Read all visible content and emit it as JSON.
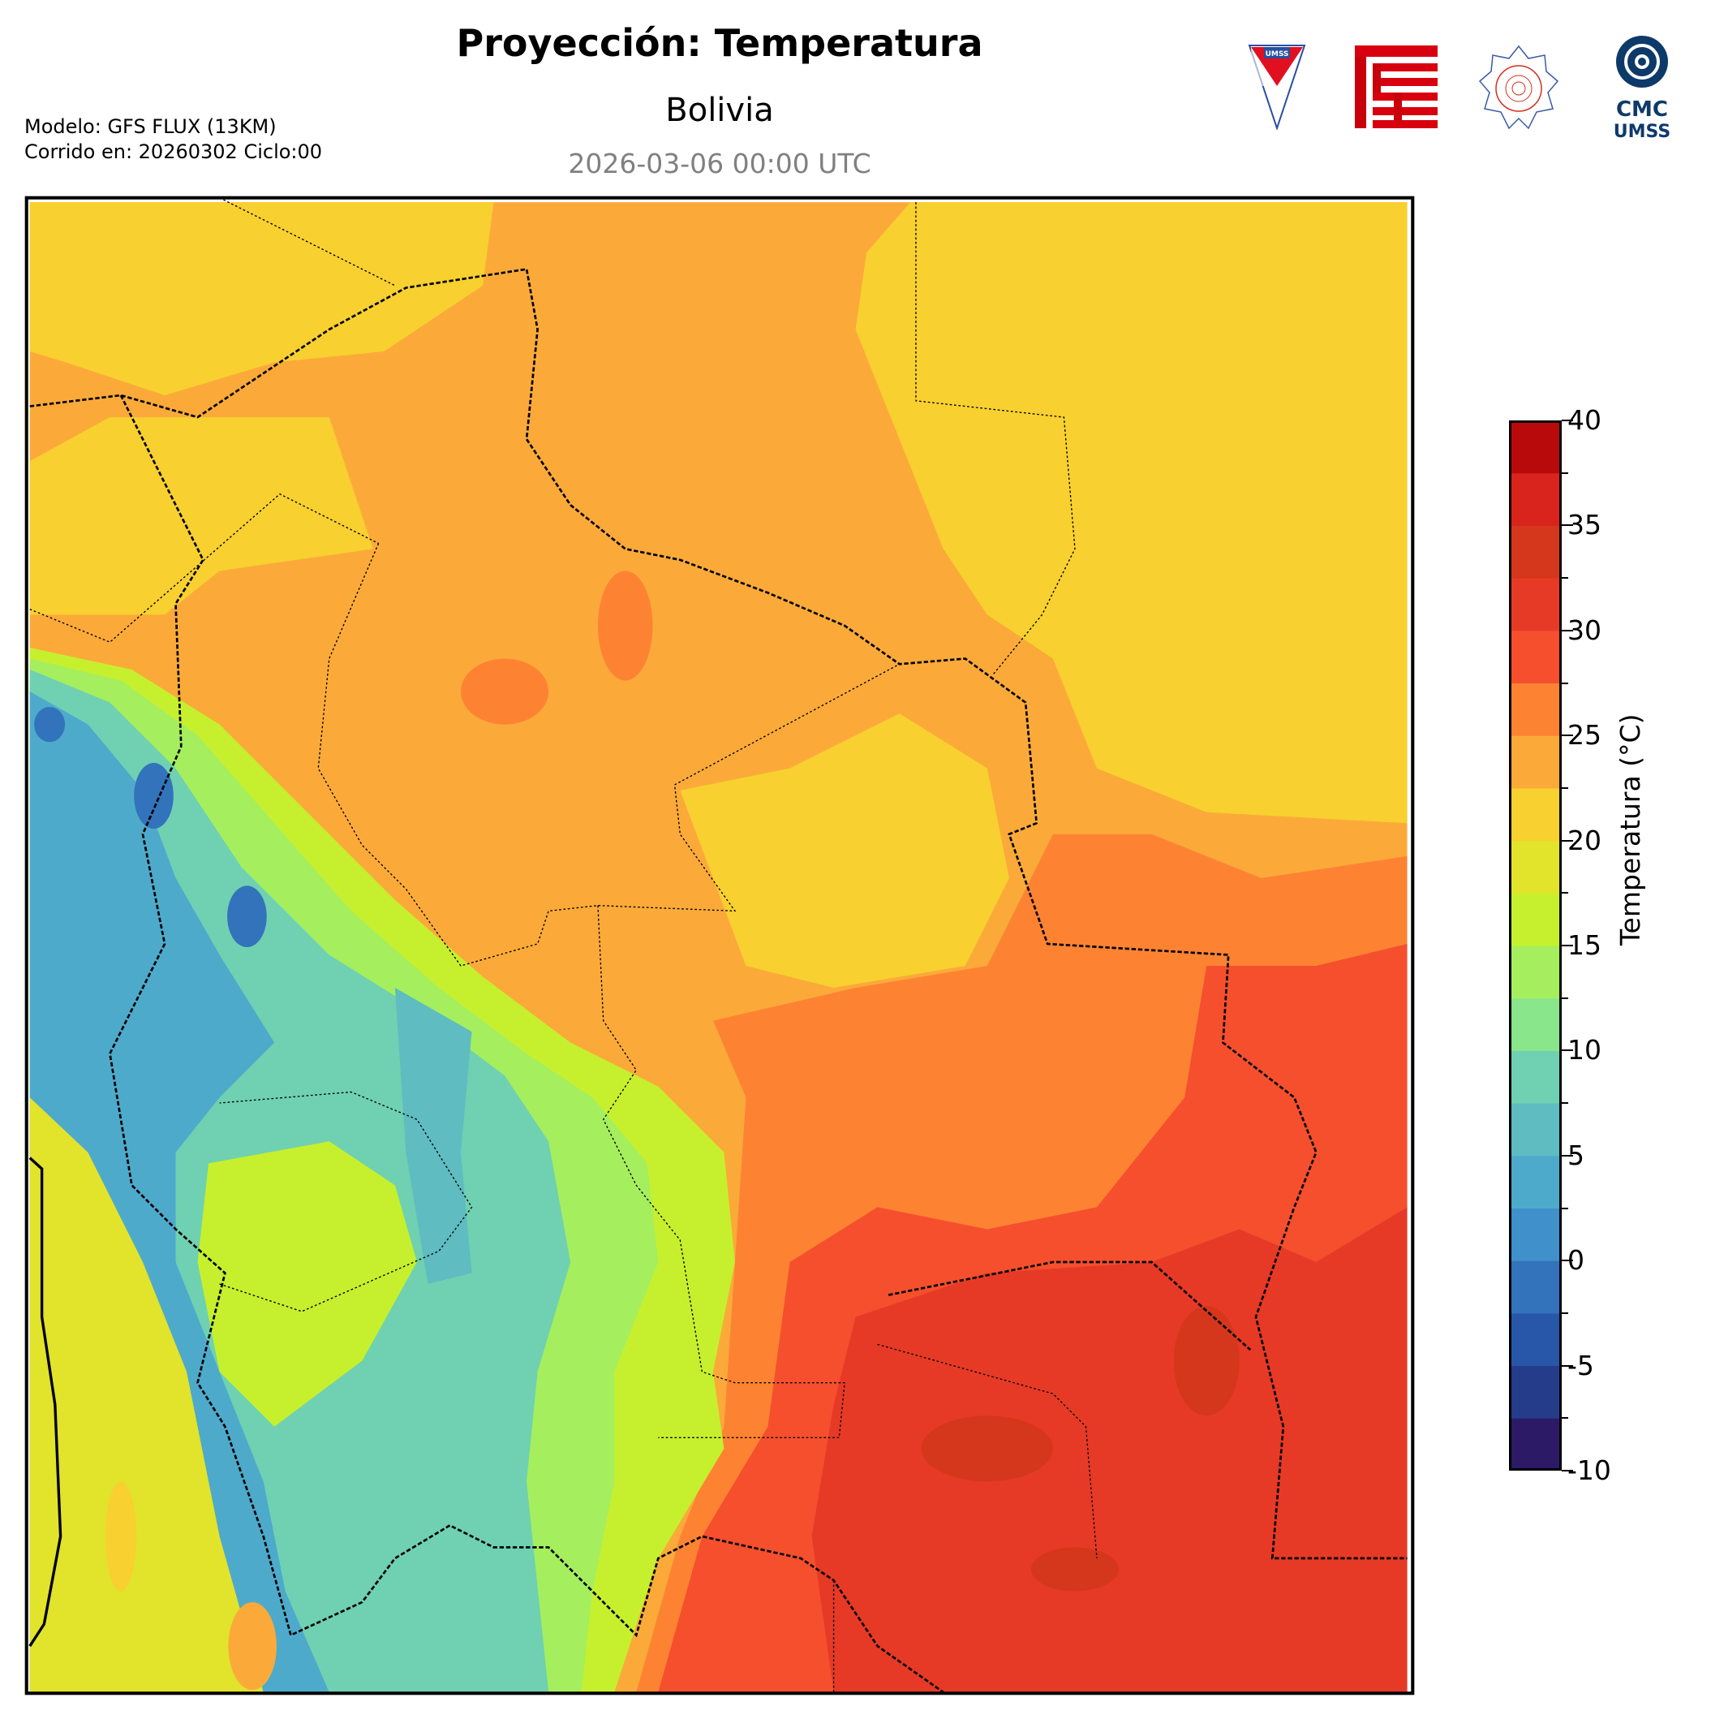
{
  "header": {
    "title": "Proyección: Temperatura",
    "subtitle": "Bolivia",
    "date": "2026-03-06 00:00 UTC",
    "model": "Modelo: GFS FLUX (13KM)",
    "run": "Corrido en: 20260302 Ciclo:00"
  },
  "logos": {
    "umss": "UMSS",
    "cmc_line1": "CMC",
    "cmc_line2": "UMSS"
  },
  "chart_data": {
    "type": "heatmap",
    "title": "Proyección: Temperatura",
    "subtitle": "Bolivia",
    "colorbar": {
      "label": "Temperatura (°C)",
      "range": [
        -10,
        40
      ],
      "step": 2.5,
      "ticks": [
        40,
        35,
        30,
        25,
        20,
        15,
        10,
        5,
        0,
        -5,
        -10
      ],
      "tick_labels": [
        "40",
        "35",
        "30",
        "25",
        "20",
        "15",
        "10",
        "5",
        "0",
        "-5",
        "-10"
      ],
      "colors": [
        "#2c1a66",
        "#253c8a",
        "#2856a8",
        "#3273bc",
        "#4090cc",
        "#4eaacb",
        "#5fbcc0",
        "#6fd1b1",
        "#8ae68a",
        "#a5ee5e",
        "#c6f02e",
        "#e2e32b",
        "#f8d030",
        "#fbaa3a",
        "#fd8333",
        "#f54f2e",
        "#e63a26",
        "#d4371c",
        "#d8241c",
        "#b80a0a"
      ]
    },
    "description_regions": {
      "west_andes": "0-15",
      "north_central": "20-25",
      "southeast_chaco": "27.5-35"
    }
  }
}
